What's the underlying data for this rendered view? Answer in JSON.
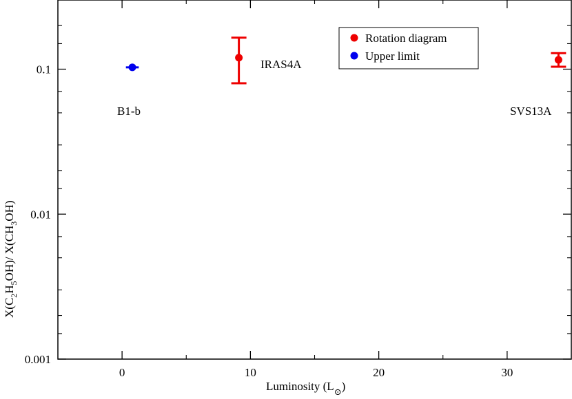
{
  "chart_data": {
    "type": "scatter",
    "ylabel": "X(C2H5OH)/ X(CH3OH)",
    "ylabel_parts": {
      "a": "X(C",
      "sub1": "2",
      "b": "H",
      "sub2": "5",
      "c": "OH)/ X(CH",
      "sub3": "3",
      "d": "OH)"
    },
    "xlabel": "Luminosity (L⊙)",
    "xlabel_parts": {
      "a": "Luminosity (L",
      "sub": "⊙",
      "b": ")"
    },
    "xlim": [
      -5,
      35
    ],
    "ylim": [
      0.001,
      0.3
    ],
    "yscale": "log",
    "x_major_ticks": [
      0,
      10,
      20,
      30
    ],
    "x_minor_ticks": [
      -5,
      5,
      15,
      25,
      35
    ],
    "x_tick_labels": [
      "0",
      "10",
      "20",
      "30"
    ],
    "y_major_ticks": [
      0.001,
      0.01,
      0.1
    ],
    "y_tick_labels": [
      "0.001",
      "0.01",
      "0.1"
    ],
    "y_minor_ticks": [
      0.0015,
      0.002,
      0.003,
      0.005,
      0.007,
      0.015,
      0.02,
      0.03,
      0.05,
      0.07,
      0.15,
      0.2,
      0.3
    ],
    "grid": false,
    "legend": {
      "placement": "top-right",
      "entries": [
        {
          "label": "Rotation diagram",
          "color": "#ee0000"
        },
        {
          "label": "Upper limit",
          "color": "#0000ee"
        }
      ]
    },
    "series": [
      {
        "name": "Rotation diagram",
        "color": "#ee0000",
        "points": [
          {
            "label": "IRAS4A",
            "x": 9.1,
            "y": 0.12,
            "y_err_low": 0.08,
            "y_err_high": 0.165
          },
          {
            "label": "SVS13A",
            "x": 34.0,
            "y": 0.116,
            "y_err_low": 0.104,
            "y_err_high": 0.129
          }
        ]
      },
      {
        "name": "Upper limit",
        "color": "#0000ee",
        "points": [
          {
            "label": "B1-b",
            "x": 0.8,
            "y": 0.103,
            "x_err_low": 0.3,
            "x_err_high": 1.3
          }
        ]
      }
    ],
    "annotations": [
      "IRAS4A",
      "B1-b",
      "SVS13A"
    ]
  }
}
